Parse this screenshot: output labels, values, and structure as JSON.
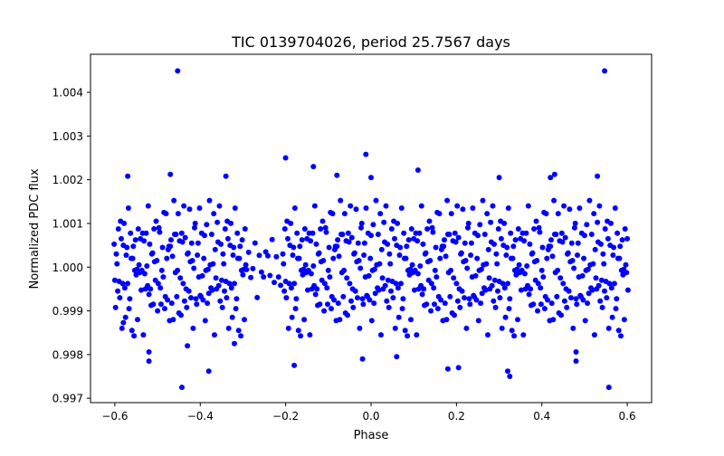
{
  "chart_data": {
    "type": "scatter",
    "title": "TIC 0139704026, period 25.7567 days",
    "xlabel": "Phase",
    "ylabel": "Normalized PDC flux",
    "xlim": [
      -0.657,
      0.657
    ],
    "ylim": [
      0.9969,
      1.00487
    ],
    "xticks": [
      -0.6,
      -0.4,
      -0.2,
      0.0,
      0.2,
      0.4,
      0.6
    ],
    "xtick_labels": [
      "−0.6",
      "−0.4",
      "−0.2",
      "0.0",
      "0.2",
      "0.4",
      "0.6"
    ],
    "yticks": [
      0.997,
      0.998,
      0.999,
      1.0,
      1.001,
      1.002,
      1.003,
      1.004
    ],
    "ytick_labels": [
      "0.997",
      "0.998",
      "0.999",
      "1.000",
      "1.001",
      "1.002",
      "1.003",
      "1.004"
    ],
    "grid": false,
    "marker_color": "#0000ff",
    "offsets_1e4": [
      6,
      -4,
      -9,
      3,
      2,
      -7,
      11,
      -1,
      -5,
      8,
      4,
      -12,
      -2,
      7,
      9,
      -6,
      -10,
      1,
      5,
      -3,
      13,
      -8,
      -7,
      10,
      0,
      -11,
      3,
      6,
      -14,
      2,
      8,
      -5,
      1,
      -9,
      12,
      4,
      -3,
      7,
      -6,
      0,
      10,
      -13,
      5,
      -2,
      -8,
      9,
      3,
      -4,
      14,
      -7
    ],
    "outliers": [
      [
        -0.453,
        1.00449
      ],
      [
        0.547,
        1.00449
      ],
      [
        -0.443,
        0.99725
      ],
      [
        0.557,
        0.99725
      ],
      [
        -0.2,
        1.0025
      ],
      [
        -0.012,
        1.00258
      ],
      [
        0.32,
        0.99762
      ],
      [
        0.325,
        0.9975
      ],
      [
        -0.38,
        0.99762
      ],
      [
        0.18,
        0.99767
      ],
      [
        0.205,
        0.9977
      ],
      [
        -0.52,
        0.99785
      ],
      [
        0.48,
        0.99785
      ],
      [
        -0.18,
        0.99775
      ],
      [
        0.11,
        1.00222
      ],
      [
        -0.135,
        1.0023
      ],
      [
        -0.47,
        1.00212
      ],
      [
        -0.57,
        1.00208
      ],
      [
        0.43,
        1.00212
      ],
      [
        0.53,
        1.00208
      ],
      [
        -0.34,
        1.00208
      ],
      [
        -0.52,
        0.99806
      ],
      [
        0.48,
        0.99806
      ],
      [
        -0.58,
        0.99873
      ],
      [
        0.0,
        1.00205
      ],
      [
        -0.02,
        0.9979
      ],
      [
        0.3,
        1.00205
      ],
      [
        -0.43,
        0.9982
      ],
      [
        -0.32,
        0.99825
      ],
      [
        0.06,
        0.99795
      ],
      [
        0.42,
        1.00205
      ],
      [
        -0.08,
        1.0021
      ]
    ]
  }
}
